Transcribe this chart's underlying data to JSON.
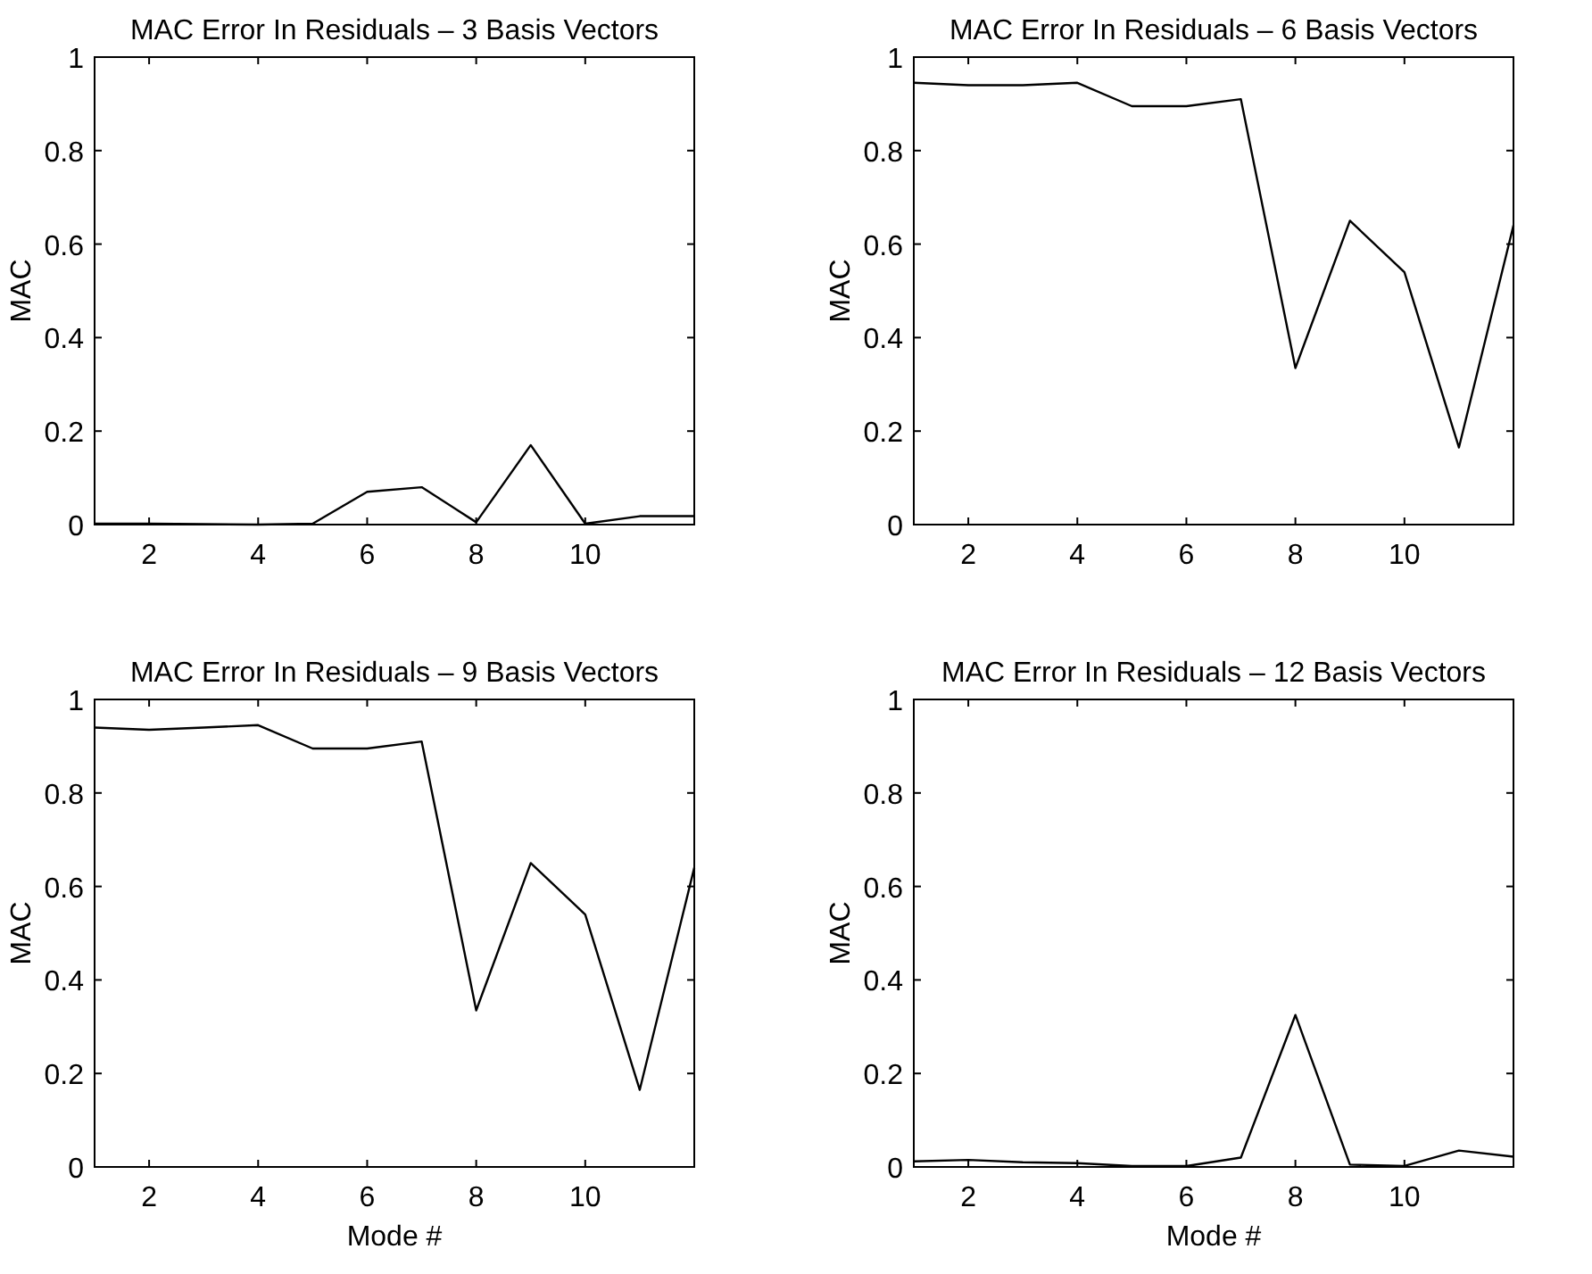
{
  "chart_data": [
    {
      "type": "line",
      "title": "MAC Error In Residuals – 3 Basis Vectors",
      "ylabel": "MAC",
      "x": [
        1,
        2,
        3,
        4,
        5,
        6,
        7,
        8,
        9,
        10,
        11,
        12
      ],
      "series": [
        {
          "color": "#000000",
          "values": [
            0.002,
            0.002,
            0.001,
            0,
            0.002,
            0.07,
            0.08,
            0.005,
            0.17,
            0.002,
            0.018,
            0.018
          ]
        }
      ],
      "xlim": [
        1,
        12
      ],
      "xticks": [
        2,
        4,
        6,
        8,
        10
      ],
      "ylim": [
        0,
        1
      ],
      "yticks": [
        0,
        0.2,
        0.4,
        0.6,
        0.8,
        1
      ]
    },
    {
      "type": "line",
      "title": "MAC Error In Residuals – 6 Basis Vectors",
      "ylabel": "MAC",
      "x": [
        1,
        2,
        3,
        4,
        5,
        6,
        7,
        8,
        9,
        10,
        11,
        12
      ],
      "series": [
        {
          "color": "#000000",
          "values": [
            0.945,
            0.94,
            0.94,
            0.945,
            0.895,
            0.895,
            0.91,
            0.335,
            0.65,
            0.54,
            0.165,
            0.64
          ]
        }
      ],
      "xlim": [
        1,
        12
      ],
      "xticks": [
        2,
        4,
        6,
        8,
        10
      ],
      "ylim": [
        0,
        1
      ],
      "yticks": [
        0,
        0.2,
        0.4,
        0.6,
        0.8,
        1
      ]
    },
    {
      "type": "line",
      "title": "MAC Error In Residuals – 9 Basis Vectors",
      "xlabel": "Mode #",
      "ylabel": "MAC",
      "x": [
        1,
        2,
        3,
        4,
        5,
        6,
        7,
        8,
        9,
        10,
        11,
        12
      ],
      "series": [
        {
          "color": "#000000",
          "values": [
            0.94,
            0.935,
            0.94,
            0.945,
            0.895,
            0.895,
            0.91,
            0.335,
            0.65,
            0.54,
            0.165,
            0.64
          ]
        }
      ],
      "xlim": [
        1,
        12
      ],
      "xticks": [
        2,
        4,
        6,
        8,
        10
      ],
      "ylim": [
        0,
        1
      ],
      "yticks": [
        0,
        0.2,
        0.4,
        0.6,
        0.8,
        1
      ]
    },
    {
      "type": "line",
      "title": "MAC Error In Residuals – 12 Basis Vectors",
      "xlabel": "Mode #",
      "ylabel": "MAC",
      "x": [
        1,
        2,
        3,
        4,
        5,
        6,
        7,
        8,
        9,
        10,
        11,
        12
      ],
      "series": [
        {
          "color": "#000000",
          "values": [
            0.012,
            0.015,
            0.01,
            0.008,
            0.002,
            0.002,
            0.02,
            0.325,
            0.005,
            0.002,
            0.035,
            0.022
          ]
        }
      ],
      "xlim": [
        1,
        12
      ],
      "xticks": [
        2,
        4,
        6,
        8,
        10
      ],
      "ylim": [
        0,
        1
      ],
      "yticks": [
        0,
        0.2,
        0.4,
        0.6,
        0.8,
        1
      ]
    }
  ]
}
